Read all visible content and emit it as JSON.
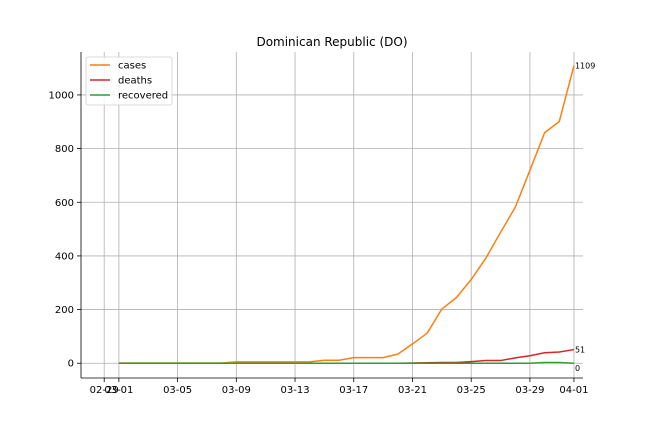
{
  "chart_data": {
    "type": "line",
    "title": "Dominican Republic (DO)",
    "xlabel": "",
    "ylabel": "",
    "x_tick_labels": [
      "02-29",
      "03-01",
      "03-05",
      "03-09",
      "03-13",
      "03-17",
      "03-21",
      "03-25",
      "03-29",
      "04-01"
    ],
    "x": [
      "03-01",
      "03-02",
      "03-03",
      "03-04",
      "03-05",
      "03-06",
      "03-07",
      "03-08",
      "03-09",
      "03-10",
      "03-11",
      "03-12",
      "03-13",
      "03-14",
      "03-15",
      "03-16",
      "03-17",
      "03-18",
      "03-19",
      "03-20",
      "03-21",
      "03-22",
      "03-23",
      "03-24",
      "03-25",
      "03-26",
      "03-27",
      "03-28",
      "03-29",
      "03-30",
      "03-31",
      "04-01"
    ],
    "ylim": [
      -55,
      1160
    ],
    "y_ticks": [
      0,
      200,
      400,
      600,
      800,
      1000
    ],
    "grid": true,
    "legend_position": "top-left",
    "series": [
      {
        "name": "cases",
        "color": "#ff7f0e",
        "values": [
          1,
          1,
          1,
          1,
          1,
          1,
          1,
          1,
          5,
          5,
          5,
          5,
          5,
          5,
          11,
          11,
          21,
          21,
          21,
          34,
          72,
          112,
          202,
          245,
          312,
          392,
          488,
          581,
          719,
          859,
          901,
          1109
        ],
        "end_label": "1109"
      },
      {
        "name": "deaths",
        "color": "#d62728",
        "values": [
          0,
          0,
          0,
          0,
          0,
          0,
          0,
          0,
          0,
          0,
          0,
          0,
          0,
          0,
          0,
          0,
          0,
          0,
          0,
          0,
          1,
          2,
          3,
          3,
          6,
          10,
          10,
          20,
          28,
          39,
          42,
          51
        ],
        "end_label": "51"
      },
      {
        "name": "recovered",
        "color": "#2ca02c",
        "values": [
          0,
          0,
          0,
          0,
          0,
          0,
          0,
          0,
          0,
          0,
          0,
          0,
          0,
          0,
          0,
          0,
          0,
          0,
          0,
          0,
          0,
          0,
          0,
          0,
          0,
          0,
          0,
          0,
          0,
          3,
          3,
          0
        ],
        "end_label": "0"
      }
    ]
  }
}
